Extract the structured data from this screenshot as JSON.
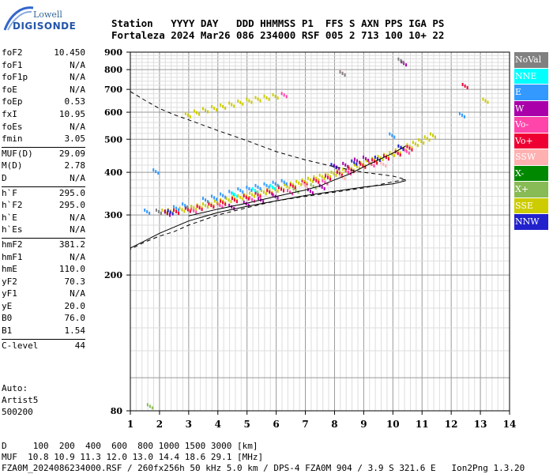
{
  "logo": {
    "line1": "Lowell",
    "line2": "DIGISONDE"
  },
  "header": {
    "line1": "Station   YYYY DAY   DDD HHMMSS P1  FFS S AXN PPS IGA PS",
    "line2": "Fortaleza 2024 Mar26 086 234000 RSF 005 2 713 100 10+ 22"
  },
  "parameters": [
    [
      {
        "name": "foF2",
        "value": "10.450"
      },
      {
        "name": "foF1",
        "value": "N/A"
      },
      {
        "name": "foF1p",
        "value": "N/A"
      },
      {
        "name": "foE",
        "value": "N/A"
      },
      {
        "name": "foEp",
        "value": "0.53"
      },
      {
        "name": "fxI",
        "value": "10.95"
      },
      {
        "name": "foEs",
        "value": "N/A"
      },
      {
        "name": "fmin",
        "value": "3.05"
      }
    ],
    [
      {
        "name": "MUF(D)",
        "value": "29.09"
      },
      {
        "name": "M(D)",
        "value": "2.78"
      },
      {
        "name": "D",
        "value": "N/A"
      }
    ],
    [
      {
        "name": "h`F",
        "value": "295.0"
      },
      {
        "name": "h`F2",
        "value": "295.0"
      },
      {
        "name": "h`E",
        "value": "N/A"
      },
      {
        "name": "h`Es",
        "value": "N/A"
      }
    ],
    [
      {
        "name": "hmF2",
        "value": "381.2"
      },
      {
        "name": "hmF1",
        "value": "N/A"
      },
      {
        "name": "hmE",
        "value": "110.0"
      },
      {
        "name": "yF2",
        "value": "70.3"
      },
      {
        "name": "yF1",
        "value": "N/A"
      },
      {
        "name": "yE",
        "value": "20.0"
      },
      {
        "name": "B0",
        "value": "76.0"
      },
      {
        "name": "B1",
        "value": "1.54"
      }
    ],
    [
      {
        "name": "C-level",
        "value": "44"
      }
    ]
  ],
  "auto_block": {
    "line1": "Auto:",
    "line2": "Artist5",
    "line3": "500200"
  },
  "footer": {
    "line1": "D     100  200  400  600  800 1000 1500 3000 [km]",
    "line2": "MUF  10.8 10.9 11.3 12.0 13.0 14.4 18.6 29.1 [MHz]",
    "line3": "FZA0M_2024086234000.RSF / 260fx256h 50 kHz 5.0 km / DPS-4 FZA0M 904 / 3.9 S 321.6 E   Ion2Png 1.3.20"
  },
  "legend": [
    {
      "label": "NoVal",
      "color": "#808080",
      "text_color": "#ffffff"
    },
    {
      "label": "NNE",
      "color": "#00ffff",
      "text_color": "#ffffff"
    },
    {
      "label": "E",
      "color": "#3399ff",
      "text_color": "#ffffff"
    },
    {
      "label": "W",
      "color": "#aa00aa",
      "text_color": "#ffffff"
    },
    {
      "label": "Vo-",
      "color": "#ff44aa",
      "text_color": "#ffffff"
    },
    {
      "label": "Vo+",
      "color": "#ee0033",
      "text_color": "#ffffff"
    },
    {
      "label": "SSW",
      "color": "#ffb0b0",
      "text_color": "#ffffff"
    },
    {
      "label": "X-",
      "color": "#008800",
      "text_color": "#ffffff"
    },
    {
      "label": "X+",
      "color": "#88bb55",
      "text_color": "#ffffff"
    },
    {
      "label": "SSE",
      "color": "#cccc00",
      "text_color": "#ffffff"
    },
    {
      "label": "NNW",
      "color": "#2222cc",
      "text_color": "#ffffff"
    }
  ],
  "chart_data": {
    "type": "scatter",
    "title": "",
    "xlabel": "",
    "ylabel": "",
    "xlim": [
      1,
      14
    ],
    "ylim": [
      80,
      900
    ],
    "y_scale": "log",
    "x_ticks": [
      1,
      2,
      3,
      4,
      5,
      6,
      7,
      8,
      9,
      10,
      11,
      12,
      13,
      14
    ],
    "y_ticks": [
      80,
      200,
      300,
      400,
      500,
      600,
      700,
      800,
      900
    ],
    "grid": true,
    "legend_position": "right",
    "profile_line": [
      [
        3.0,
        298
      ],
      [
        3.5,
        305
      ],
      [
        4.0,
        312
      ],
      [
        5.0,
        325
      ],
      [
        6.0,
        340
      ],
      [
        7.0,
        355
      ],
      [
        7.5,
        365
      ],
      [
        8.0,
        380
      ],
      [
        8.5,
        395
      ],
      [
        9.0,
        415
      ],
      [
        9.5,
        435
      ],
      [
        10.0,
        455
      ],
      [
        10.45,
        478
      ]
    ],
    "lower_trace_line": [
      [
        1.0,
        240
      ],
      [
        1.5,
        252
      ],
      [
        2.0,
        265
      ],
      [
        3.0,
        288
      ],
      [
        4.0,
        305
      ],
      [
        5.0,
        318
      ],
      [
        6.0,
        330
      ],
      [
        7.0,
        342
      ],
      [
        8.0,
        352
      ],
      [
        9.0,
        362
      ],
      [
        10.0,
        370
      ],
      [
        10.45,
        378
      ]
    ],
    "dashed_profile": [
      [
        1.0,
        690
      ],
      [
        1.5,
        650
      ],
      [
        2.0,
        615
      ],
      [
        2.5,
        590
      ],
      [
        3.0,
        570
      ],
      [
        4.0,
        530
      ],
      [
        5.0,
        495
      ],
      [
        6.0,
        460
      ],
      [
        7.0,
        435
      ],
      [
        8.0,
        415
      ],
      [
        9.0,
        400
      ],
      [
        10.0,
        390
      ],
      [
        10.45,
        381
      ],
      [
        10.0,
        375
      ],
      [
        9.0,
        360
      ],
      [
        8.0,
        350
      ],
      [
        7.0,
        340
      ],
      [
        6.0,
        330
      ],
      [
        5.0,
        315
      ],
      [
        4.0,
        300
      ],
      [
        3.0,
        280
      ],
      [
        2.5,
        268
      ],
      [
        2.0,
        260
      ],
      [
        1.5,
        250
      ],
      [
        1.0,
        238
      ]
    ],
    "echo_clusters": [
      {
        "color": "#cccc00",
        "points": [
          [
            2.2,
            305
          ],
          [
            2.4,
            306
          ],
          [
            2.6,
            307
          ],
          [
            2.8,
            309
          ],
          [
            3.0,
            311
          ],
          [
            3.2,
            313
          ],
          [
            3.4,
            316
          ],
          [
            3.6,
            318
          ],
          [
            3.8,
            321
          ],
          [
            4.0,
            324
          ],
          [
            4.2,
            327
          ],
          [
            4.4,
            330
          ],
          [
            4.6,
            333
          ],
          [
            4.8,
            336
          ],
          [
            5.0,
            339
          ],
          [
            5.2,
            342
          ],
          [
            5.4,
            345
          ],
          [
            5.6,
            348
          ],
          [
            5.8,
            351
          ],
          [
            6.0,
            354
          ],
          [
            6.2,
            358
          ],
          [
            6.4,
            362
          ],
          [
            6.6,
            366
          ],
          [
            6.8,
            370
          ],
          [
            7.0,
            374
          ],
          [
            7.2,
            378
          ],
          [
            7.4,
            382
          ],
          [
            7.6,
            386
          ],
          [
            7.8,
            390
          ],
          [
            8.0,
            394
          ],
          [
            8.2,
            398
          ],
          [
            8.4,
            402
          ],
          [
            8.6,
            408
          ],
          [
            8.8,
            414
          ],
          [
            9.0,
            420
          ],
          [
            9.2,
            426
          ],
          [
            9.4,
            432
          ],
          [
            9.6,
            438
          ],
          [
            9.8,
            444
          ],
          [
            10.0,
            450
          ],
          [
            10.2,
            458
          ],
          [
            10.4,
            466
          ],
          [
            10.6,
            474
          ],
          [
            10.8,
            482
          ],
          [
            11.0,
            490
          ],
          [
            11.2,
            500
          ],
          [
            11.4,
            510
          ],
          [
            3.0,
            585
          ],
          [
            3.3,
            595
          ],
          [
            3.6,
            605
          ],
          [
            3.9,
            613
          ],
          [
            4.2,
            620
          ],
          [
            4.5,
            628
          ],
          [
            4.8,
            637
          ],
          [
            5.1,
            645
          ],
          [
            5.4,
            652
          ],
          [
            5.7,
            658
          ],
          [
            6.0,
            664
          ],
          [
            13.2,
            645
          ]
        ]
      },
      {
        "color": "#ee0033",
        "points": [
          [
            2.3,
            303
          ],
          [
            2.6,
            305
          ],
          [
            3.0,
            309
          ],
          [
            3.4,
            313
          ],
          [
            3.8,
            318
          ],
          [
            4.2,
            324
          ],
          [
            4.6,
            330
          ],
          [
            5.0,
            336
          ],
          [
            5.4,
            342
          ],
          [
            5.8,
            348
          ],
          [
            6.2,
            355
          ],
          [
            6.6,
            362
          ],
          [
            7.0,
            369
          ],
          [
            7.4,
            376
          ],
          [
            7.8,
            384
          ],
          [
            8.2,
            394
          ],
          [
            8.6,
            404
          ],
          [
            9.0,
            416
          ],
          [
            9.4,
            428
          ],
          [
            9.8,
            440
          ],
          [
            10.2,
            452
          ],
          [
            10.6,
            468
          ],
          [
            12.5,
            712
          ]
        ]
      },
      {
        "color": "#3399ff",
        "points": [
          [
            3.6,
            330
          ],
          [
            3.9,
            335
          ],
          [
            4.2,
            340
          ],
          [
            4.5,
            346
          ],
          [
            4.8,
            352
          ],
          [
            5.1,
            356
          ],
          [
            5.4,
            360
          ],
          [
            5.7,
            364
          ],
          [
            6.0,
            368
          ],
          [
            6.3,
            372
          ],
          [
            2.6,
            312
          ],
          [
            2.9,
            318
          ],
          [
            10.0,
            510
          ],
          [
            12.4,
            585
          ],
          [
            1.9,
            400
          ],
          [
            1.6,
            305
          ]
        ]
      },
      {
        "color": "#aa00aa",
        "points": [
          [
            4.5,
            315
          ],
          [
            5.0,
            322
          ],
          [
            5.5,
            330
          ],
          [
            6.0,
            338
          ],
          [
            7.2,
            350
          ],
          [
            7.6,
            360
          ],
          [
            8.1,
            412
          ],
          [
            8.4,
            418
          ],
          [
            8.8,
            430
          ],
          [
            9.1,
            436
          ],
          [
            10.4,
            830
          ],
          [
            2.3,
            301
          ]
        ]
      },
      {
        "color": "#ff44aa",
        "points": [
          [
            3.2,
            307
          ],
          [
            4.1,
            318
          ],
          [
            5.2,
            331
          ],
          [
            6.5,
            348
          ],
          [
            7.7,
            372
          ],
          [
            8.5,
            398
          ],
          [
            9.3,
            420
          ],
          [
            10.5,
            458
          ],
          [
            6.3,
            670
          ]
        ]
      },
      {
        "color": "#ffb0b0",
        "points": [
          [
            7.0,
            365
          ],
          [
            8.3,
            385
          ],
          [
            9.7,
            420
          ],
          [
            8.3,
            778
          ]
        ]
      },
      {
        "color": "#88bb55",
        "points": [
          [
            1.7,
            82
          ],
          [
            6.7,
            352
          ],
          [
            7.3,
            362
          ]
        ]
      },
      {
        "color": "#2222cc",
        "points": [
          [
            8.0,
            415
          ],
          [
            8.7,
            425
          ],
          [
            9.5,
            436
          ],
          [
            10.3,
            470
          ],
          [
            2.4,
            304
          ]
        ]
      },
      {
        "color": "#00ffff",
        "points": [
          [
            4.6,
            342
          ],
          [
            5.3,
            352
          ],
          [
            5.9,
            360
          ]
        ]
      },
      {
        "color": "#808080",
        "points": [
          [
            8.3,
            775
          ],
          [
            10.3,
            845
          ],
          [
            2.0,
            305
          ]
        ]
      }
    ]
  }
}
